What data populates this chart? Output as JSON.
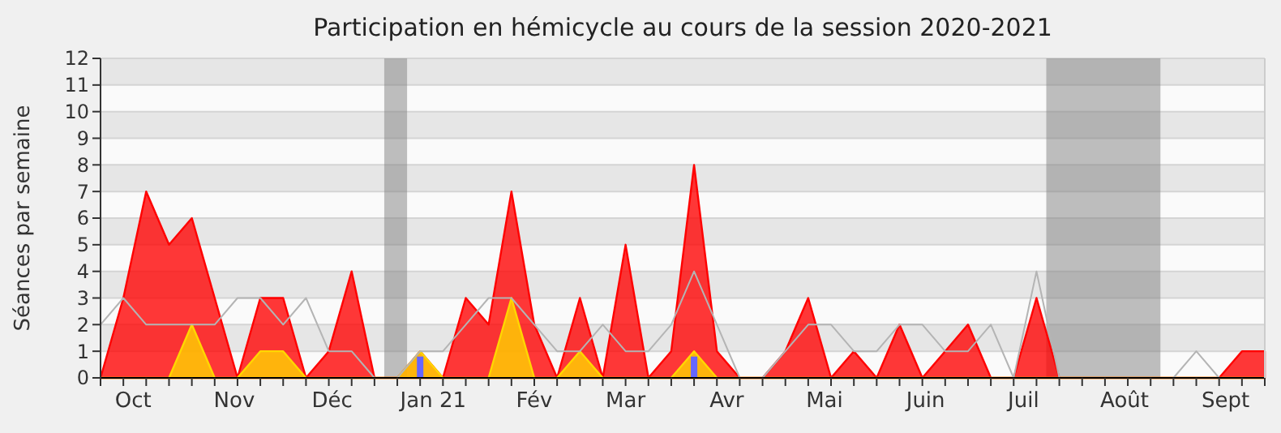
{
  "chart_data": {
    "type": "area",
    "title": "Participation en hémicycle au cours de la session 2020-2021",
    "ylabel": "Séances par semaine",
    "x": [
      "2020-09-21",
      "2020-09-28",
      "2020-10-05",
      "2020-10-12",
      "2020-10-19",
      "2020-10-26",
      "2020-11-02",
      "2020-11-09",
      "2020-11-16",
      "2020-11-23",
      "2020-11-30",
      "2020-12-07",
      "2020-12-14",
      "2020-12-21",
      "2020-12-28",
      "2021-01-04",
      "2021-01-11",
      "2021-01-18",
      "2021-01-25",
      "2021-02-01",
      "2021-02-08",
      "2021-02-15",
      "2021-02-22",
      "2021-03-01",
      "2021-03-08",
      "2021-03-15",
      "2021-03-22",
      "2021-03-29",
      "2021-04-05",
      "2021-04-12",
      "2021-04-19",
      "2021-04-26",
      "2021-05-03",
      "2021-05-10",
      "2021-05-17",
      "2021-05-24",
      "2021-05-31",
      "2021-06-07",
      "2021-06-14",
      "2021-06-21",
      "2021-06-28",
      "2021-07-05",
      "2021-07-12",
      "2021-07-19",
      "2021-07-26",
      "2021-08-02",
      "2021-08-09",
      "2021-08-16",
      "2021-08-23",
      "2021-08-30",
      "2021-09-06",
      "2021-09-13"
    ],
    "series": [
      {
        "type": "line",
        "color": "#b4b4b4",
        "values": [
          2,
          3,
          2,
          2,
          2,
          2,
          3,
          3,
          2,
          3,
          1,
          1,
          0,
          0,
          1,
          1,
          2,
          3,
          3,
          2,
          1,
          1,
          2,
          1,
          1,
          2,
          4,
          2,
          0,
          0,
          1,
          2,
          2,
          1,
          1,
          2,
          2,
          1,
          1,
          2,
          0,
          4,
          0,
          0,
          0,
          0,
          0,
          0,
          1,
          0,
          0,
          0
        ]
      },
      {
        "color": "#ff0000",
        "values": [
          0,
          3,
          7,
          5,
          6,
          3,
          0,
          3,
          3,
          0,
          1,
          4,
          0,
          0,
          1,
          0,
          3,
          2,
          7,
          2,
          0,
          3,
          0,
          5,
          0,
          1,
          8,
          1,
          0,
          0,
          1,
          3,
          0,
          1,
          0,
          2,
          0,
          1,
          2,
          0,
          0,
          3,
          0,
          0,
          0,
          0,
          0,
          0,
          0,
          0,
          1,
          1
        ]
      },
      {
        "color": "#ffd700",
        "values": [
          0,
          0,
          0,
          0,
          2,
          0,
          0,
          1,
          1,
          0,
          0,
          0,
          0,
          0,
          1,
          0,
          0,
          0,
          3,
          0,
          0,
          1,
          0,
          0,
          0,
          0,
          1,
          0,
          0,
          0,
          0,
          0,
          0,
          0,
          0,
          0,
          0,
          0,
          0,
          0,
          0,
          0,
          0,
          0,
          0,
          0,
          0,
          0,
          0,
          0,
          0,
          0
        ]
      },
      {
        "type": "bar",
        "color": "#6666ff",
        "x": [
          "2020-12-28",
          "2021-03-22"
        ],
        "values": [
          0.8,
          0.8
        ]
      }
    ],
    "xlim": [
      "2020-09-21",
      "2021-09-13"
    ],
    "xticks": [
      {
        "value": "2020-10-01",
        "label": "Oct"
      },
      {
        "value": "2020-11-01",
        "label": "Nov"
      },
      {
        "value": "2020-12-01",
        "label": "Déc"
      },
      {
        "value": "2021-01-01",
        "label": "Jan 21"
      },
      {
        "value": "2021-02-01",
        "label": "Fév"
      },
      {
        "value": "2021-03-01",
        "label": "Mar"
      },
      {
        "value": "2021-04-01",
        "label": "Avr"
      },
      {
        "value": "2021-05-01",
        "label": "Mai"
      },
      {
        "value": "2021-06-01",
        "label": "Juin"
      },
      {
        "value": "2021-07-01",
        "label": "Juil"
      },
      {
        "value": "2021-08-01",
        "label": "Août"
      },
      {
        "value": "2021-09-01",
        "label": "Sept"
      }
    ],
    "ylim": [
      0,
      12
    ],
    "yticks": [
      0,
      1,
      2,
      3,
      4,
      5,
      6,
      7,
      8,
      9,
      10,
      11,
      12
    ],
    "grid": "y",
    "bands": [
      {
        "axis": "x",
        "from": "2020-12-17",
        "to": "2020-12-24",
        "color": "#808080"
      },
      {
        "axis": "x",
        "from": "2021-07-08",
        "to": "2021-08-12",
        "color": "#808080"
      }
    ]
  }
}
